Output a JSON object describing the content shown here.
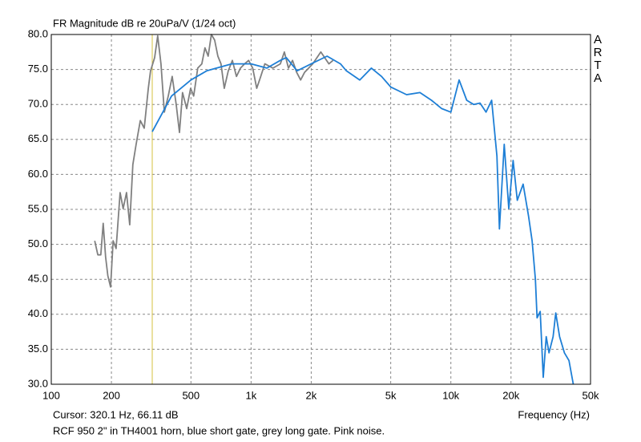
{
  "chart_data": {
    "type": "line",
    "title": "FR Magnitude dB re 20uPa/V (1/24 oct)",
    "xlabel": "Frequency (Hz)",
    "brand": [
      "A",
      "R",
      "T",
      "A"
    ],
    "cursor": {
      "text": "Cursor: 320.1 Hz, 66.11 dB",
      "x": 320.1,
      "color": "#d4c040"
    },
    "caption": "RCF 950 2\" in TH4001 horn, blue short gate, grey long gate. Pink noise.",
    "xscale": "log",
    "grid": true,
    "xlim": [
      100,
      50000
    ],
    "ylim": [
      30,
      80
    ],
    "xticks": [
      100,
      200,
      500,
      {
        "value": 1000,
        "label": "1k"
      },
      {
        "value": 2000,
        "label": "2k"
      },
      {
        "value": 5000,
        "label": "5k"
      },
      {
        "value": 10000,
        "label": "10k"
      },
      {
        "value": 20000,
        "label": "20k"
      },
      {
        "value": 50000,
        "label": "50k"
      }
    ],
    "yticks": [
      {
        "value": 30,
        "label": "30.0"
      },
      {
        "value": 35,
        "label": "35.0"
      },
      {
        "value": 40,
        "label": "40.0"
      },
      {
        "value": 45,
        "label": "45.0"
      },
      {
        "value": 50,
        "label": "50.0"
      },
      {
        "value": 55,
        "label": "55.0"
      },
      {
        "value": 60,
        "label": "60.0"
      },
      {
        "value": 65,
        "label": "65.0"
      },
      {
        "value": 70,
        "label": "70.0"
      },
      {
        "value": 75,
        "label": "75.0"
      },
      {
        "value": 80,
        "label": "80.0"
      }
    ],
    "series": [
      {
        "color": "#808080",
        "x": [
          165,
          171,
          177,
          182,
          187,
          192,
          198,
          204,
          211,
          221,
          229,
          238,
          247,
          256,
          266,
          279,
          292,
          306,
          314,
          329,
          341,
          354,
          368,
          385,
          403,
          422,
          438,
          454,
          476,
          498,
          516,
          541,
          567,
          588,
          610,
          633,
          657,
          682,
          707,
          734,
          769,
          806,
          845,
          885,
          928,
          972,
          1019,
          1067,
          1118,
          1172,
          1287,
          1402,
          1468,
          1538,
          1612,
          1690,
          1770,
          1854,
          2035,
          2234,
          2452,
          2570
        ],
        "values": [
          50.5,
          48.5,
          48.5,
          53,
          48.2,
          45.5,
          43.9,
          50.5,
          49.4,
          57.4,
          55.1,
          57.4,
          52.8,
          61.4,
          64.3,
          67.7,
          66.6,
          72.3,
          74.8,
          76.7,
          79.8,
          75.8,
          68.9,
          71.2,
          74,
          70,
          66,
          71.7,
          69.4,
          72.3,
          71.2,
          75.2,
          75.8,
          78.1,
          76.9,
          80,
          79.2,
          76.9,
          75.8,
          72.3,
          74.8,
          76.3,
          74,
          75.2,
          75.8,
          76.3,
          75.2,
          72.3,
          74,
          75.8,
          75.2,
          75.8,
          77.5,
          75.2,
          76.3,
          74.6,
          73.5,
          74.6,
          75.8,
          77.5,
          75.8,
          76.3
        ]
      },
      {
        "color": "#1e7fd6",
        "x": [
          320,
          400,
          500,
          600,
          800,
          1000,
          1200,
          1400,
          1500,
          1700,
          2000,
          2400,
          2800,
          3000,
          3500,
          4000,
          4500,
          5000,
          6000,
          7000,
          8000,
          9000,
          10000,
          11000,
          12000,
          13000,
          14000,
          15000,
          16000,
          17000,
          17500,
          18500,
          19500,
          20500,
          21500,
          23000,
          24500,
          25500,
          26500,
          27000,
          28000,
          29000,
          30000,
          31000,
          32500,
          33500,
          35000,
          37000,
          39000,
          41000
        ],
        "values": [
          66.1,
          71.2,
          73.5,
          74.8,
          75.8,
          75.8,
          75.2,
          76.3,
          76.7,
          74.8,
          75.8,
          76.9,
          75.8,
          74.8,
          73.5,
          75.2,
          74,
          72.5,
          71.4,
          71.7,
          70.6,
          69.4,
          68.9,
          73.5,
          70.6,
          70,
          70.2,
          68.9,
          70.6,
          62.6,
          52.2,
          64.3,
          55.1,
          62,
          56.3,
          58.6,
          54,
          50.5,
          45,
          39.5,
          40.4,
          31,
          36.8,
          34.5,
          36.8,
          40.2,
          36.8,
          34.5,
          33.4,
          30
        ]
      }
    ]
  }
}
